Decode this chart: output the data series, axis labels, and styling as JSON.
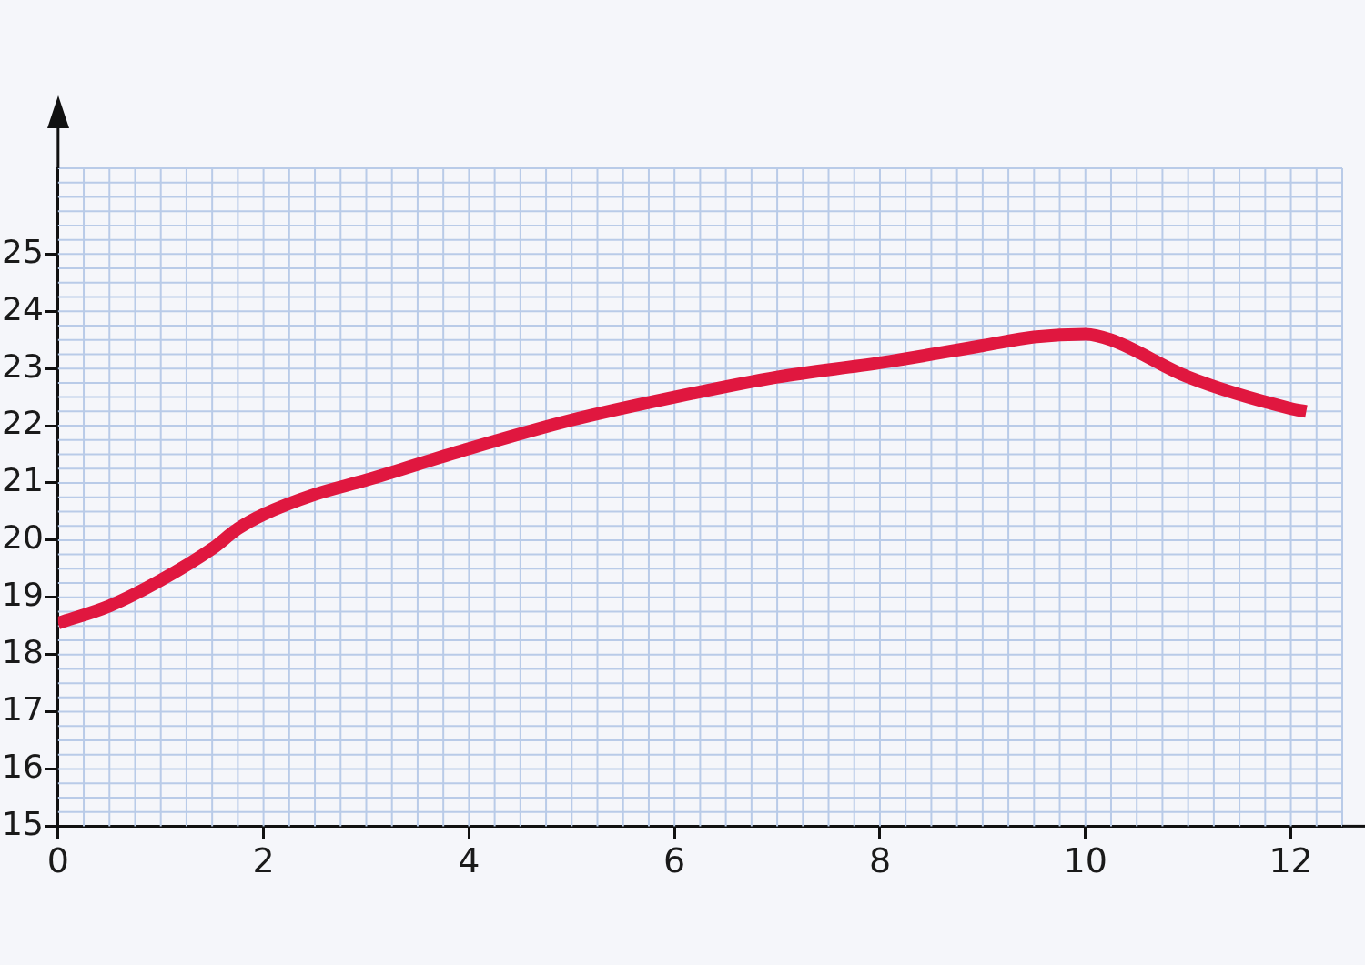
{
  "chart_data": {
    "type": "line",
    "x": [
      0,
      0.5,
      1,
      1.5,
      1.75,
      2,
      2.5,
      3,
      4,
      5,
      6,
      7,
      8,
      9,
      9.5,
      10,
      10.25,
      11,
      12,
      12.15
    ],
    "series": [
      {
        "color": "#e0173f",
        "values": [
          18.55,
          18.85,
          19.3,
          19.85,
          20.2,
          20.45,
          20.8,
          21.05,
          21.6,
          22.1,
          22.5,
          22.85,
          23.1,
          23.4,
          23.55,
          23.6,
          23.5,
          22.85,
          22.3,
          22.25
        ]
      }
    ],
    "xlim": [
      0,
      12.5
    ],
    "ylim": [
      15,
      26.5
    ],
    "xticks": [
      0,
      2,
      4,
      6,
      8,
      10,
      12
    ],
    "yticks": [
      15,
      16,
      17,
      18,
      19,
      20,
      21,
      22,
      23,
      24,
      25
    ],
    "grid": true,
    "legend": false,
    "marker": "none",
    "line_style": "solid"
  }
}
